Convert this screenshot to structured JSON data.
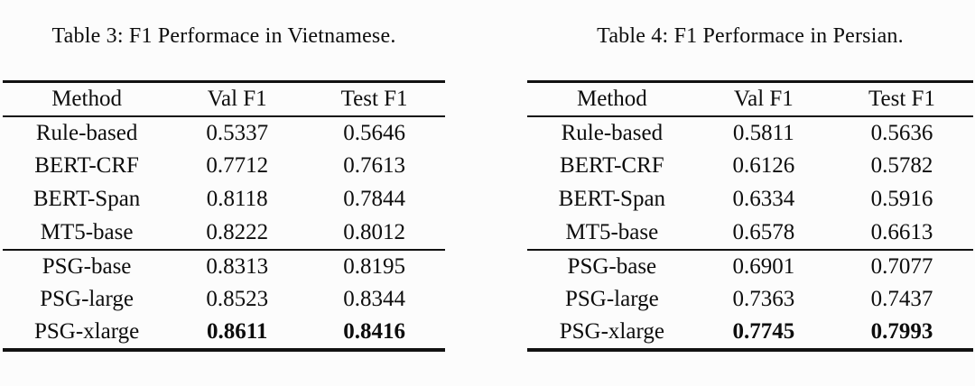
{
  "page": {
    "background": "#fcfcfc",
    "text_color": "#0d0d0d",
    "rule_color": "#121212"
  },
  "tables": [
    {
      "caption": "Table 3: F1 Performace in Vietnamese.",
      "headers": [
        "Method",
        "Val F1",
        "Test F1"
      ],
      "group_break_after_row": 3,
      "rows": [
        {
          "cells": [
            "Rule-based",
            "0.5337",
            "0.5646"
          ],
          "bold_values": false
        },
        {
          "cells": [
            "BERT-CRF",
            "0.7712",
            "0.7613"
          ],
          "bold_values": false
        },
        {
          "cells": [
            "BERT-Span",
            "0.8118",
            "0.7844"
          ],
          "bold_values": false
        },
        {
          "cells": [
            "MT5-base",
            "0.8222",
            "0.8012"
          ],
          "bold_values": false
        },
        {
          "cells": [
            "PSG-base",
            "0.8313",
            "0.8195"
          ],
          "bold_values": false
        },
        {
          "cells": [
            "PSG-large",
            "0.8523",
            "0.8344"
          ],
          "bold_values": false
        },
        {
          "cells": [
            "PSG-xlarge",
            "0.8611",
            "0.8416"
          ],
          "bold_values": true
        }
      ]
    },
    {
      "caption": "Table 4: F1 Performace in Persian.",
      "headers": [
        "Method",
        "Val F1",
        "Test F1"
      ],
      "group_break_after_row": 3,
      "rows": [
        {
          "cells": [
            "Rule-based",
            "0.5811",
            "0.5636"
          ],
          "bold_values": false
        },
        {
          "cells": [
            "BERT-CRF",
            "0.6126",
            "0.5782"
          ],
          "bold_values": false
        },
        {
          "cells": [
            "BERT-Span",
            "0.6334",
            "0.5916"
          ],
          "bold_values": false
        },
        {
          "cells": [
            "MT5-base",
            "0.6578",
            "0.6613"
          ],
          "bold_values": false
        },
        {
          "cells": [
            "PSG-base",
            "0.6901",
            "0.7077"
          ],
          "bold_values": false
        },
        {
          "cells": [
            "PSG-large",
            "0.7363",
            "0.7437"
          ],
          "bold_values": false
        },
        {
          "cells": [
            "PSG-xlarge",
            "0.7745",
            "0.7993"
          ],
          "bold_values": true
        }
      ]
    }
  ]
}
